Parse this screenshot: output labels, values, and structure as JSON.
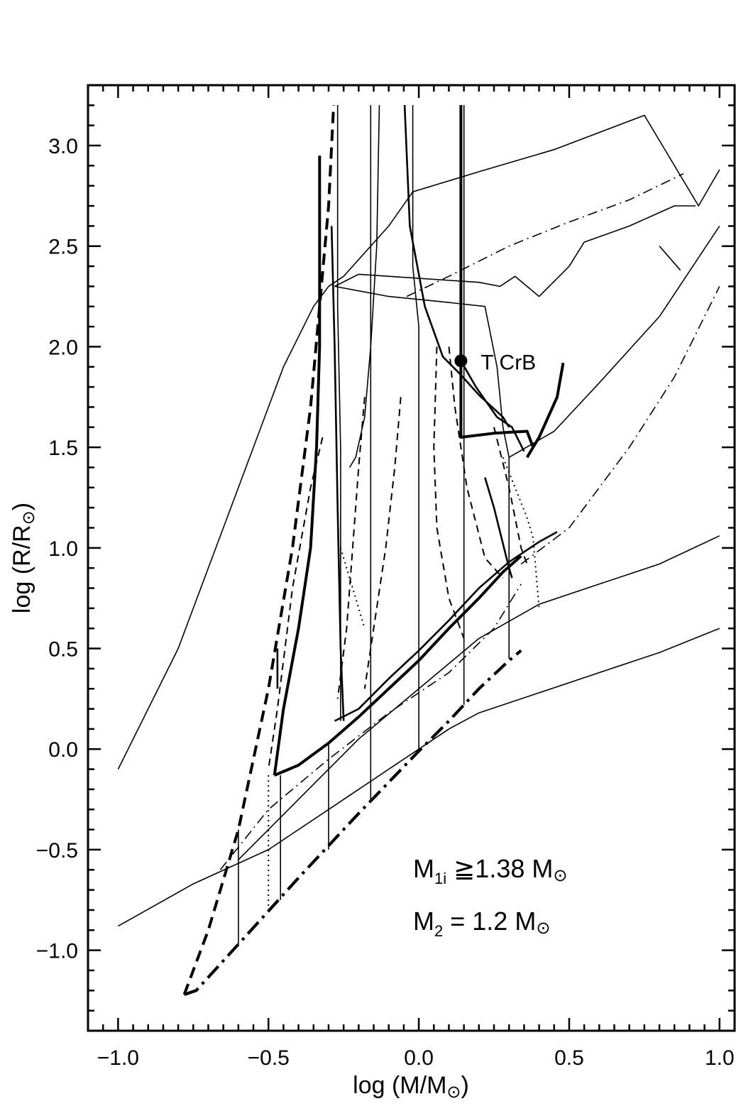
{
  "chart_data": {
    "type": "line",
    "title": "",
    "xlabel": {
      "main": "log (M/M",
      "close": ")"
    },
    "ylabel": {
      "main": "log (R/R",
      "close": ")"
    },
    "xlim": [
      -1.1,
      1.05
    ],
    "ylim": [
      -1.4,
      3.3
    ],
    "x_ticks": [
      {
        "v": -1.0,
        "label": "−1.0"
      },
      {
        "v": -0.5,
        "label": "−0.5"
      },
      {
        "v": 0.0,
        "label": "0.0"
      },
      {
        "v": 0.5,
        "label": "0.5"
      },
      {
        "v": 1.0,
        "label": "1.0"
      }
    ],
    "y_ticks": [
      {
        "v": -1.0,
        "label": "−1.0"
      },
      {
        "v": -0.5,
        "label": "−0.5"
      },
      {
        "v": 0.0,
        "label": "0.0"
      },
      {
        "v": 0.5,
        "label": "0.5"
      },
      {
        "v": 1.0,
        "label": "1.0"
      },
      {
        "v": 1.5,
        "label": "1.5"
      },
      {
        "v": 2.0,
        "label": "2.0"
      },
      {
        "v": 2.5,
        "label": "2.5"
      },
      {
        "v": 3.0,
        "label": "3.0"
      }
    ],
    "grid": false,
    "marker": {
      "label": "T CrB",
      "x": 0.14,
      "y": 1.93
    },
    "annotations": [
      {
        "main": "M",
        "sub": "1i",
        "rest": " ≧1.38 M"
      },
      {
        "main": "M",
        "sub": "2",
        "rest": " =  1.2 M"
      }
    ],
    "series": [
      {
        "style": "thin",
        "points": [
          [
            -1.0,
            -0.1
          ],
          [
            -0.8,
            0.5
          ],
          [
            -0.6,
            1.3
          ],
          [
            -0.45,
            1.9
          ],
          [
            -0.35,
            2.2
          ],
          [
            -0.3,
            2.3
          ],
          [
            -0.25,
            2.35
          ],
          [
            -0.1,
            2.6
          ],
          [
            -0.02,
            2.77
          ],
          [
            0.2,
            2.87
          ],
          [
            0.45,
            2.98
          ],
          [
            0.75,
            3.15
          ],
          [
            0.93,
            2.7
          ],
          [
            1.0,
            2.88
          ]
        ]
      },
      {
        "style": "thin",
        "points": [
          [
            -0.28,
            2.3
          ],
          [
            -0.2,
            2.36
          ],
          [
            0.0,
            2.34
          ],
          [
            0.2,
            2.32
          ],
          [
            0.27,
            2.3
          ],
          [
            0.32,
            2.35
          ],
          [
            0.4,
            2.25
          ],
          [
            0.5,
            2.4
          ],
          [
            0.55,
            2.52
          ],
          [
            0.7,
            2.6
          ],
          [
            0.85,
            2.7
          ],
          [
            0.92,
            2.7
          ]
        ]
      },
      {
        "style": "dashdot_thin",
        "points": [
          [
            -0.04,
            2.25
          ],
          [
            0.1,
            2.35
          ],
          [
            0.3,
            2.5
          ],
          [
            0.5,
            2.62
          ],
          [
            0.7,
            2.73
          ],
          [
            0.88,
            2.86
          ]
        ]
      },
      {
        "style": "thin",
        "points": [
          [
            0.3,
            1.45
          ],
          [
            0.45,
            1.58
          ],
          [
            0.6,
            1.82
          ],
          [
            0.8,
            2.15
          ],
          [
            1.0,
            2.6
          ]
        ]
      },
      {
        "style": "thin",
        "points": [
          [
            0.8,
            2.5
          ],
          [
            0.87,
            2.38
          ]
        ]
      },
      {
        "style": "dashdot_thin",
        "points": [
          [
            0.34,
            0.92
          ],
          [
            0.5,
            1.1
          ],
          [
            0.7,
            1.5
          ],
          [
            0.85,
            1.85
          ],
          [
            1.0,
            2.3
          ]
        ]
      },
      {
        "style": "thin",
        "points": [
          [
            -0.28,
            2.3
          ],
          [
            -0.1,
            2.25
          ],
          [
            0.1,
            2.22
          ],
          [
            0.22,
            2.2
          ],
          [
            0.26,
            1.9
          ],
          [
            0.28,
            1.6
          ],
          [
            0.3,
            1.45
          ]
        ]
      },
      {
        "style": "thin",
        "points": [
          [
            -0.6,
            -0.55
          ],
          [
            -0.4,
            -0.25
          ],
          [
            -0.2,
            0.05
          ],
          [
            0.0,
            0.3
          ],
          [
            0.2,
            0.55
          ],
          [
            0.4,
            0.72
          ],
          [
            0.6,
            0.82
          ],
          [
            0.8,
            0.92
          ],
          [
            1.0,
            1.06
          ]
        ]
      },
      {
        "style": "thin",
        "points": [
          [
            -1.0,
            -0.88
          ],
          [
            -0.75,
            -0.67
          ],
          [
            -0.5,
            -0.5
          ],
          [
            -0.3,
            -0.3
          ],
          [
            -0.1,
            -0.1
          ],
          [
            0.1,
            0.1
          ],
          [
            0.2,
            0.18
          ],
          [
            0.4,
            0.28
          ],
          [
            0.6,
            0.38
          ],
          [
            0.8,
            0.48
          ],
          [
            1.0,
            0.6
          ]
        ]
      },
      {
        "style": "dashdot_thin",
        "points": [
          [
            -0.66,
            -0.6
          ],
          [
            -0.5,
            -0.3
          ],
          [
            -0.3,
            -0.05
          ],
          [
            -0.1,
            0.18
          ],
          [
            0.1,
            0.38
          ],
          [
            0.25,
            0.6
          ],
          [
            0.34,
            0.82
          ]
        ]
      },
      {
        "style": "thick",
        "points": [
          [
            -0.48,
            -0.13
          ],
          [
            -0.4,
            -0.08
          ],
          [
            -0.3,
            0.03
          ],
          [
            -0.2,
            0.16
          ],
          [
            -0.1,
            0.3
          ],
          [
            0.0,
            0.44
          ],
          [
            0.1,
            0.6
          ],
          [
            0.2,
            0.75
          ],
          [
            0.28,
            0.88
          ],
          [
            0.34,
            0.96
          ]
        ]
      },
      {
        "style": "medium",
        "points": [
          [
            -0.28,
            0.14
          ],
          [
            -0.2,
            0.2
          ],
          [
            -0.1,
            0.35
          ],
          [
            0.0,
            0.49
          ],
          [
            0.1,
            0.64
          ],
          [
            0.2,
            0.8
          ],
          [
            0.3,
            0.93
          ],
          [
            0.4,
            1.03
          ],
          [
            0.46,
            1.08
          ]
        ]
      },
      {
        "style": "thick_dashdot",
        "points": [
          [
            -0.78,
            -1.22
          ],
          [
            -0.74,
            -1.2
          ],
          [
            -0.6,
            -0.97
          ],
          [
            -0.4,
            -0.64
          ],
          [
            -0.2,
            -0.32
          ],
          [
            0.0,
            -0.01
          ],
          [
            0.1,
            0.14
          ],
          [
            0.2,
            0.3
          ],
          [
            0.3,
            0.44
          ],
          [
            0.34,
            0.49
          ]
        ]
      },
      {
        "style": "thick_dashed",
        "points": [
          [
            -0.78,
            -1.22
          ],
          [
            -0.7,
            -0.9
          ],
          [
            -0.6,
            -0.4
          ],
          [
            -0.5,
            0.3
          ],
          [
            -0.42,
            1.0
          ],
          [
            -0.36,
            1.7
          ],
          [
            -0.33,
            2.2
          ],
          [
            -0.3,
            2.7
          ],
          [
            -0.28,
            3.3
          ]
        ]
      },
      {
        "style": "thick",
        "points": [
          [
            -0.48,
            -0.13
          ],
          [
            -0.45,
            0.2
          ],
          [
            -0.4,
            0.6
          ],
          [
            -0.36,
            1.0
          ],
          [
            -0.34,
            1.5
          ],
          [
            -0.33,
            2.0
          ],
          [
            -0.33,
            2.95
          ]
        ]
      },
      {
        "style": "thin",
        "points": [
          [
            -0.27,
            3.3
          ],
          [
            -0.27,
            2.2
          ],
          [
            -0.26,
            1.5
          ],
          [
            -0.26,
            0.7
          ],
          [
            -0.26,
            0.14
          ]
        ]
      },
      {
        "style": "medium",
        "points": [
          [
            -0.29,
            2.6
          ],
          [
            -0.28,
            2.0
          ],
          [
            -0.27,
            1.2
          ],
          [
            -0.26,
            0.5
          ],
          [
            -0.25,
            0.14
          ]
        ]
      },
      {
        "style": "thin",
        "points": [
          [
            -0.13,
            3.3
          ],
          [
            -0.14,
            2.5
          ],
          [
            -0.16,
            2.0
          ],
          [
            -0.18,
            1.65
          ],
          [
            -0.21,
            1.45
          ],
          [
            -0.23,
            1.4
          ]
        ]
      },
      {
        "style": "thin",
        "points": [
          [
            -0.16,
            3.3
          ],
          [
            -0.16,
            -0.26
          ]
        ]
      },
      {
        "style": "thin",
        "points": [
          [
            -0.02,
            3.3
          ],
          [
            -0.02,
            2.4
          ],
          [
            0.0,
            2.1
          ],
          [
            0.0,
            -0.01
          ]
        ]
      },
      {
        "style": "medium",
        "points": [
          [
            -0.05,
            3.3
          ],
          [
            -0.03,
            2.6
          ],
          [
            0.02,
            2.2
          ],
          [
            0.08,
            1.95
          ],
          [
            0.14,
            1.86
          ],
          [
            0.2,
            1.76
          ],
          [
            0.28,
            1.65
          ],
          [
            0.3,
            1.6
          ]
        ]
      },
      {
        "style": "thin",
        "points": [
          [
            0.15,
            3.3
          ],
          [
            0.15,
            1.55
          ]
        ]
      },
      {
        "style": "thick",
        "points": [
          [
            0.14,
            3.3
          ],
          [
            0.14,
            1.55
          ],
          [
            0.25,
            1.57
          ],
          [
            0.36,
            1.58
          ],
          [
            0.38,
            1.5
          ]
        ]
      },
      {
        "style": "medium",
        "points": [
          [
            0.14,
            1.93
          ],
          [
            0.19,
            1.8
          ],
          [
            0.26,
            1.65
          ],
          [
            0.31,
            1.6
          ],
          [
            0.35,
            1.48
          ]
        ]
      },
      {
        "style": "thick",
        "points": [
          [
            0.36,
            1.45
          ],
          [
            0.4,
            1.55
          ],
          [
            0.46,
            1.75
          ],
          [
            0.48,
            1.92
          ]
        ]
      },
      {
        "style": "thin",
        "points": [
          [
            0.15,
            1.55
          ],
          [
            0.15,
            0.22
          ]
        ]
      },
      {
        "style": "thin",
        "points": [
          [
            0.3,
            1.45
          ],
          [
            0.3,
            0.45
          ]
        ]
      },
      {
        "style": "medium",
        "points": [
          [
            0.22,
            1.35
          ],
          [
            0.25,
            1.2
          ],
          [
            0.3,
            0.9
          ],
          [
            0.31,
            0.85
          ]
        ]
      },
      {
        "style": "dashed",
        "points": [
          [
            -0.32,
            1.55
          ],
          [
            -0.36,
            1.3
          ],
          [
            -0.42,
            0.8
          ],
          [
            -0.47,
            0.2
          ],
          [
            -0.5,
            -0.1
          ]
        ]
      },
      {
        "style": "dashed",
        "points": [
          [
            -0.18,
            1.75
          ],
          [
            -0.2,
            1.4
          ],
          [
            -0.22,
            1.0
          ],
          [
            -0.24,
            0.6
          ],
          [
            -0.27,
            0.25
          ]
        ]
      },
      {
        "style": "dashed",
        "points": [
          [
            -0.06,
            1.75
          ],
          [
            -0.08,
            1.4
          ],
          [
            -0.11,
            1.0
          ],
          [
            -0.15,
            0.6
          ],
          [
            -0.18,
            0.3
          ]
        ]
      },
      {
        "style": "dashed",
        "points": [
          [
            0.06,
            2.0
          ],
          [
            0.05,
            1.5
          ],
          [
            0.06,
            1.1
          ],
          [
            0.1,
            0.75
          ],
          [
            0.15,
            0.55
          ]
        ]
      },
      {
        "style": "dashed",
        "points": [
          [
            0.1,
            2.0
          ],
          [
            0.12,
            1.7
          ],
          [
            0.16,
            1.3
          ],
          [
            0.22,
            0.95
          ],
          [
            0.28,
            0.85
          ]
        ]
      },
      {
        "style": "dashed",
        "points": [
          [
            0.25,
            1.6
          ],
          [
            0.3,
            1.3
          ],
          [
            0.34,
            1.0
          ],
          [
            0.36,
            0.92
          ]
        ]
      },
      {
        "style": "dotted",
        "points": [
          [
            0.28,
            1.45
          ],
          [
            0.32,
            1.3
          ],
          [
            0.36,
            1.15
          ],
          [
            0.38,
            1.05
          ],
          [
            0.4,
            0.7
          ]
        ]
      },
      {
        "style": "dotted",
        "points": [
          [
            -0.26,
            1.0
          ],
          [
            -0.22,
            0.8
          ],
          [
            -0.18,
            0.6
          ]
        ]
      },
      {
        "style": "dotted",
        "points": [
          [
            -0.5,
            -0.13
          ],
          [
            -0.5,
            -0.82
          ]
        ]
      },
      {
        "style": "thin",
        "points": [
          [
            -0.46,
            -0.13
          ],
          [
            -0.46,
            -0.75
          ]
        ]
      },
      {
        "style": "thin",
        "points": [
          [
            -0.3,
            0.03
          ],
          [
            -0.3,
            -0.5
          ]
        ]
      },
      {
        "style": "thin",
        "points": [
          [
            -0.6,
            -0.4
          ],
          [
            -0.6,
            -0.97
          ]
        ]
      },
      {
        "style": "medium",
        "points": [
          [
            -0.47,
            0.5
          ],
          [
            -0.47,
            0.3
          ]
        ]
      }
    ]
  }
}
